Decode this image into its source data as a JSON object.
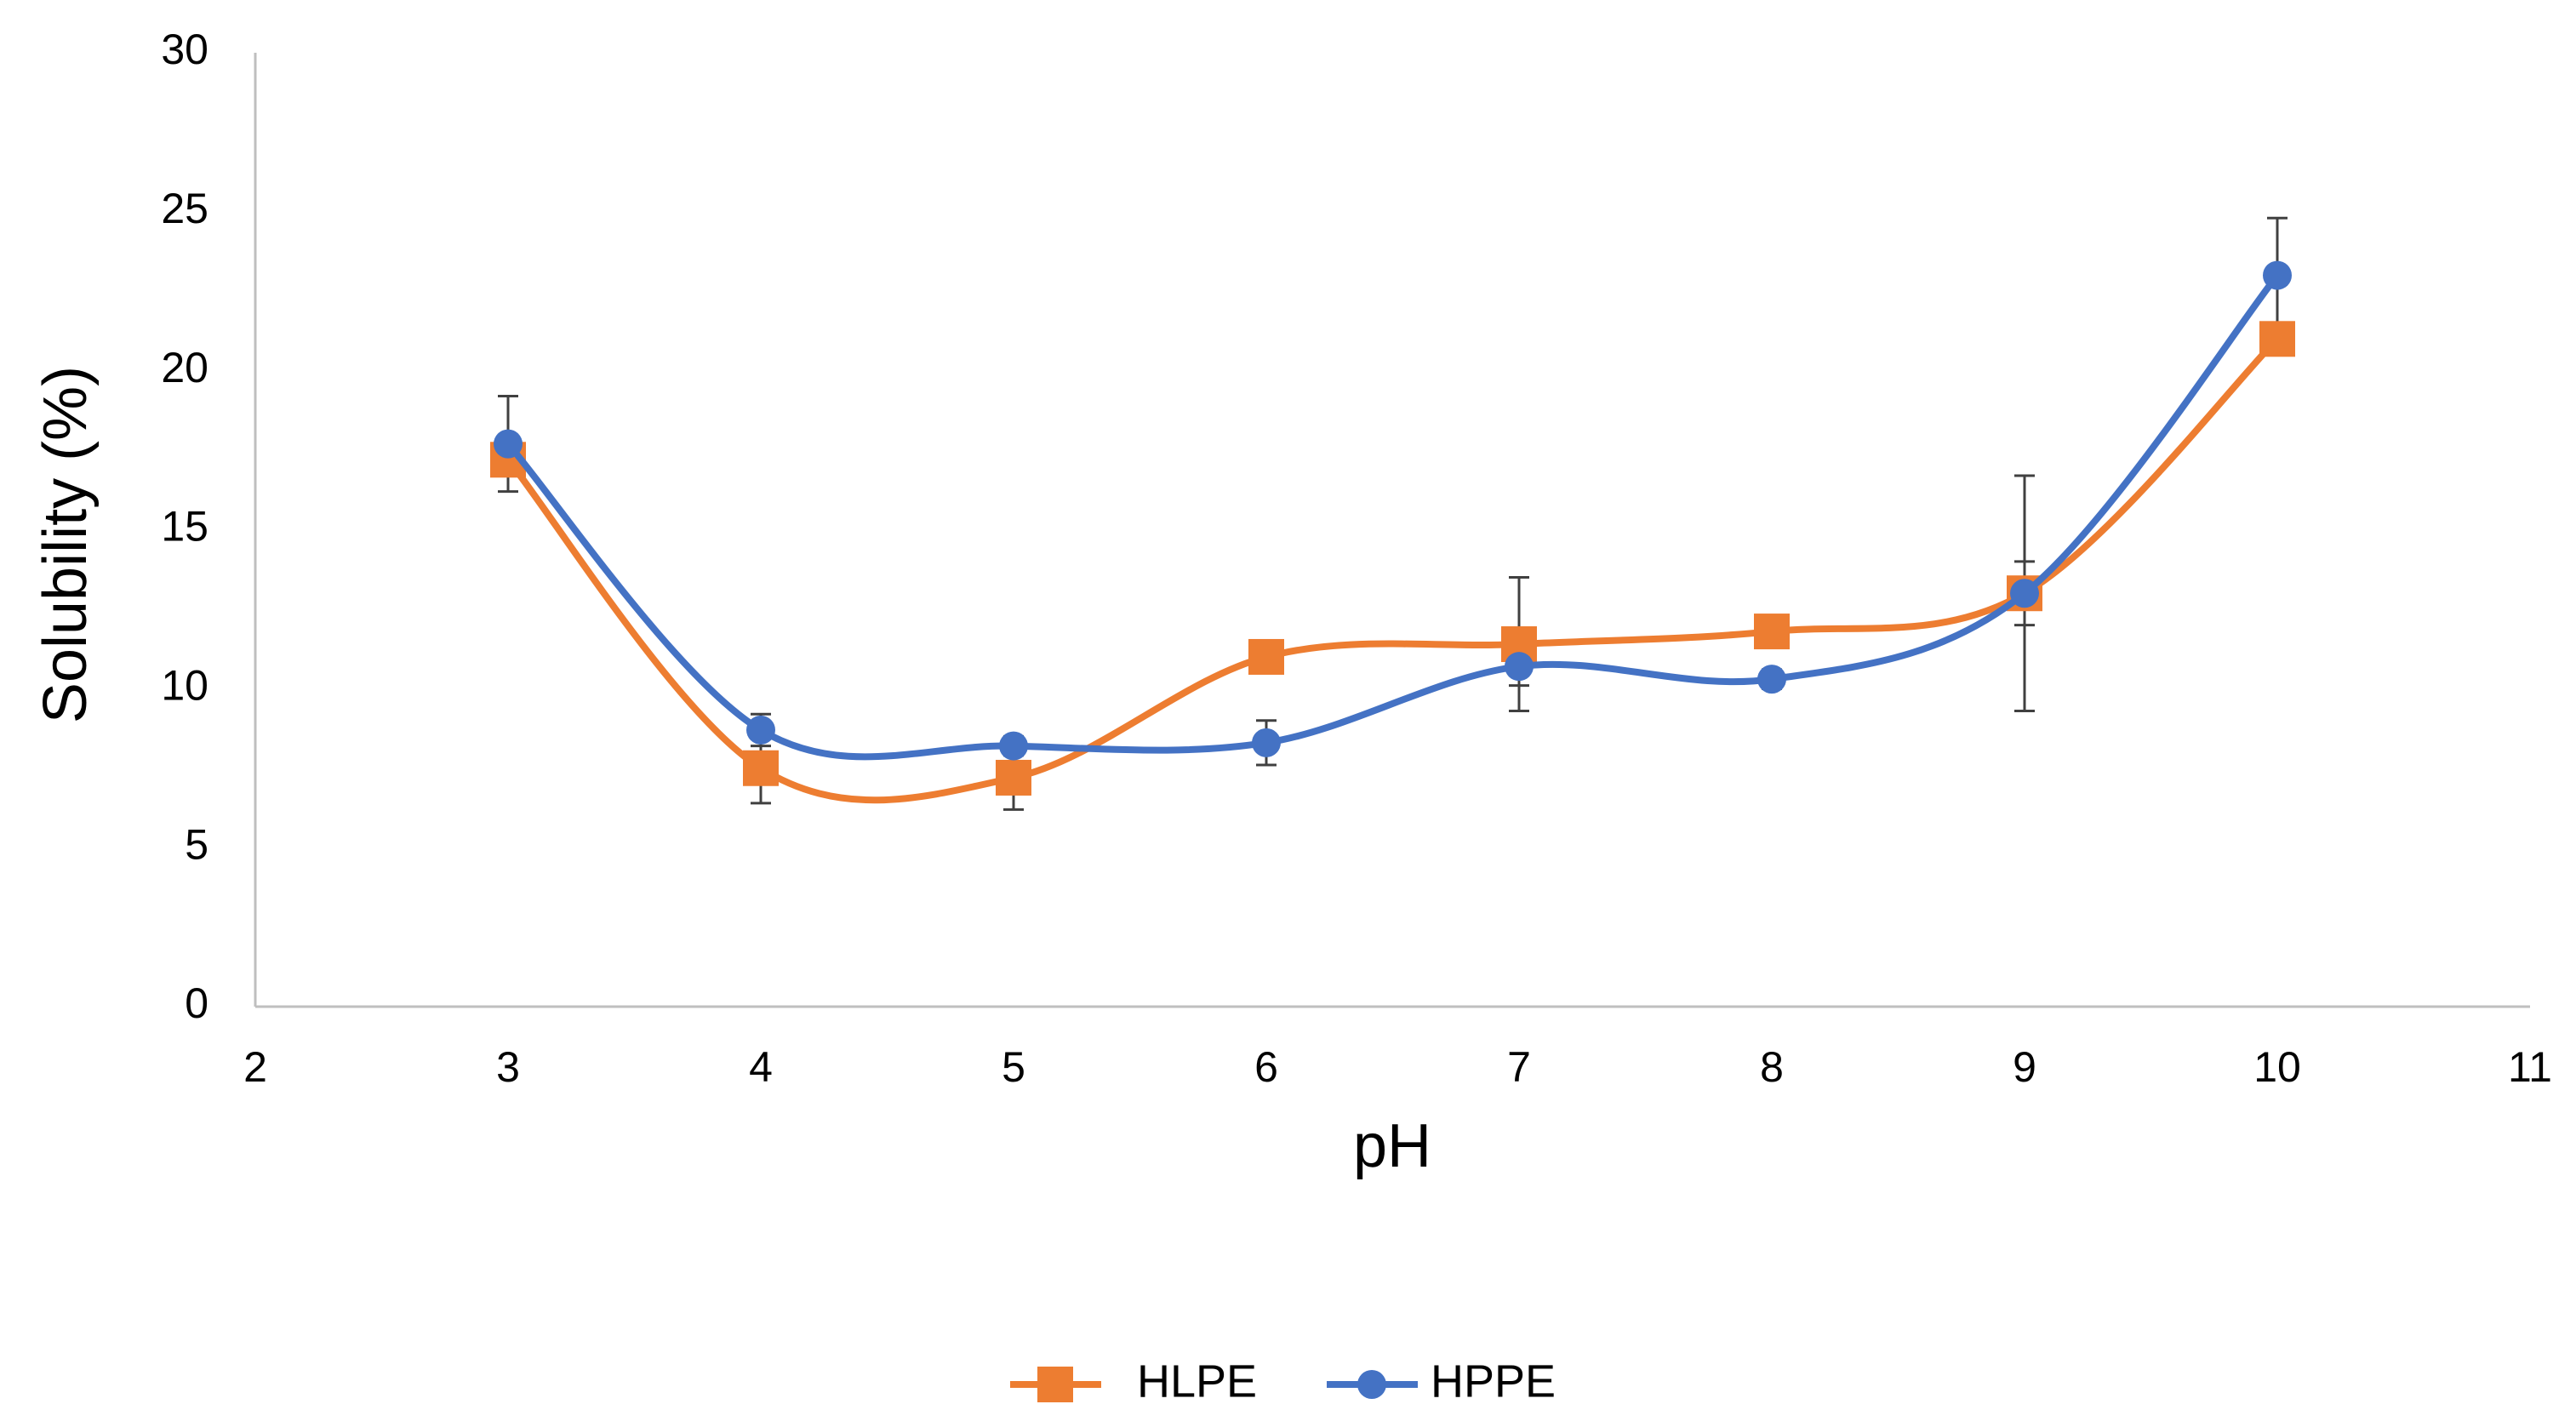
{
  "chart_data": {
    "type": "line",
    "smooth": true,
    "x_label": "pH",
    "y_label": "Solubility (%)",
    "x": [
      3,
      4,
      5,
      6,
      7,
      8,
      9,
      10
    ],
    "series": [
      {
        "name": "HLPE",
        "color": "#ed7d31",
        "marker": "square",
        "values": [
          17.2,
          7.5,
          7.2,
          11.0,
          11.4,
          11.8,
          13.0,
          21.0
        ],
        "errors": [
          0.5,
          1.1,
          1.0,
          0.3,
          2.1,
          0.3,
          1.0,
          0.5
        ]
      },
      {
        "name": "HPPE",
        "color": "#4472c4",
        "marker": "circle",
        "values": [
          17.7,
          8.7,
          8.2,
          8.3,
          10.7,
          10.3,
          13.0,
          23.0
        ],
        "errors": [
          1.5,
          0.5,
          0.3,
          0.7,
          0.6,
          0.3,
          3.7,
          1.8
        ]
      }
    ],
    "xlim": [
      2,
      11
    ],
    "xticks": [
      2,
      3,
      4,
      5,
      6,
      7,
      8,
      9,
      10,
      11
    ],
    "ylim": [
      0,
      30
    ],
    "yticks": [
      0,
      5,
      10,
      15,
      20,
      25,
      30
    ],
    "grid": false,
    "legend": "bottom"
  }
}
